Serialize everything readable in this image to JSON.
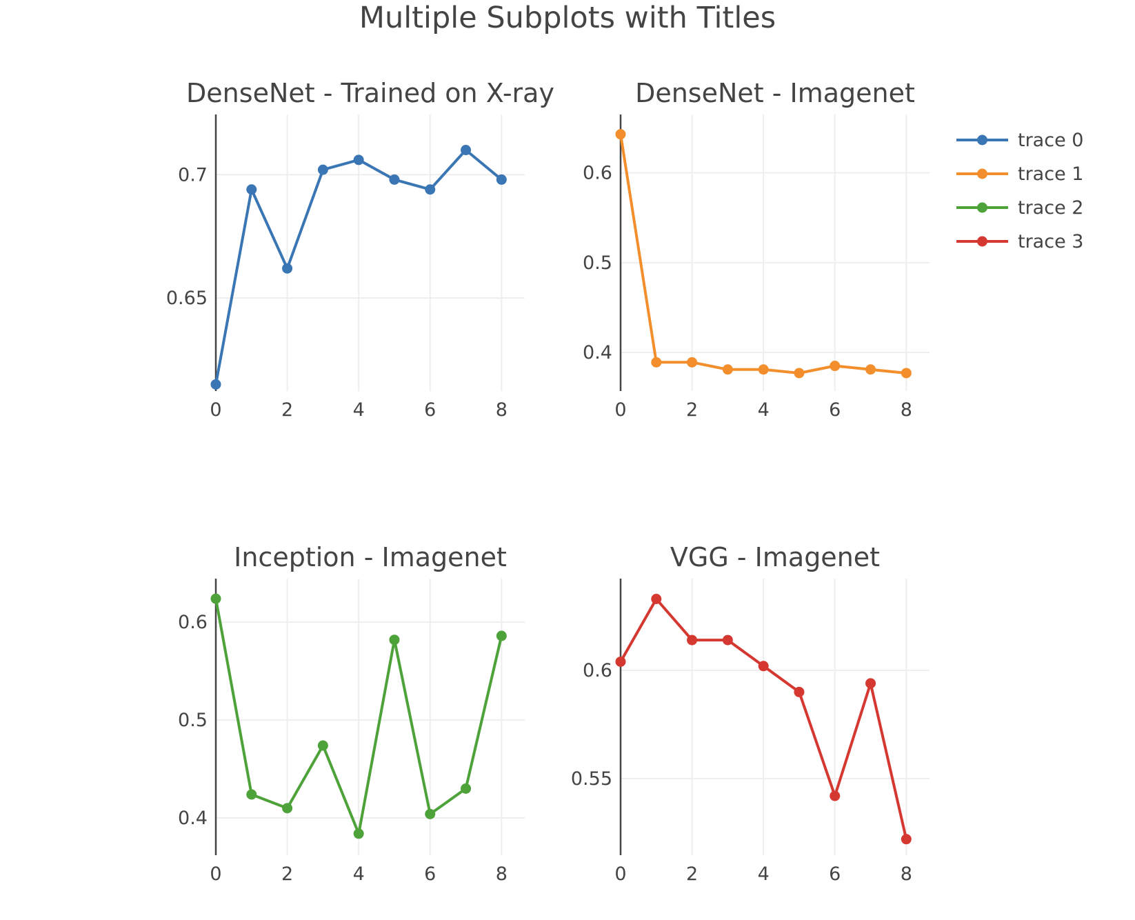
{
  "figure": {
    "title": "Multiple Subplots with Titles"
  },
  "legend": {
    "placement": "top-right",
    "entries": [
      {
        "name": "trace 0",
        "color": "#3a75b4"
      },
      {
        "name": "trace 1",
        "color": "#f28e2b"
      },
      {
        "name": "trace 2",
        "color": "#4ea23a"
      },
      {
        "name": "trace 3",
        "color": "#d43830"
      }
    ]
  },
  "chart_data": [
    {
      "type": "line",
      "title": "DenseNet - Trained on X-ray",
      "series": [
        {
          "name": "trace 0",
          "color": "#3a75b4",
          "x": [
            0,
            1,
            2,
            3,
            4,
            5,
            6,
            7,
            8
          ],
          "values": [
            0.615,
            0.694,
            0.662,
            0.702,
            0.706,
            0.698,
            0.694,
            0.71,
            0.698
          ]
        }
      ],
      "xticks": [
        0,
        2,
        4,
        6,
        8
      ],
      "xtick_labels": [
        "0",
        "2",
        "4",
        "6",
        "8"
      ],
      "yticks": [
        0.65,
        0.7
      ],
      "ytick_labels": [
        "0.65",
        "0.7"
      ],
      "xlim": [
        0,
        8.65
      ],
      "ylim": [
        0.6123,
        0.7244
      ],
      "grid": true,
      "xlabel": "",
      "ylabel": ""
    },
    {
      "type": "line",
      "title": "DenseNet - Imagenet",
      "series": [
        {
          "name": "trace 1",
          "color": "#f28e2b",
          "x": [
            0,
            1,
            2,
            3,
            4,
            5,
            6,
            7,
            8
          ],
          "values": [
            0.643,
            0.389,
            0.389,
            0.381,
            0.381,
            0.377,
            0.385,
            0.381,
            0.377
          ]
        }
      ],
      "xticks": [
        0,
        2,
        4,
        6,
        8
      ],
      "xtick_labels": [
        "0",
        "2",
        "4",
        "6",
        "8"
      ],
      "yticks": [
        0.4,
        0.5,
        0.6
      ],
      "ytick_labels": [
        "0.4",
        "0.5",
        "0.6"
      ],
      "xlim": [
        0,
        8.65
      ],
      "ylim": [
        0.357,
        0.665
      ],
      "grid": true,
      "xlabel": "",
      "ylabel": ""
    },
    {
      "type": "line",
      "title": "Inception - Imagenet",
      "series": [
        {
          "name": "trace 2",
          "color": "#4ea23a",
          "x": [
            0,
            1,
            2,
            3,
            4,
            5,
            6,
            7,
            8
          ],
          "values": [
            0.624,
            0.424,
            0.41,
            0.474,
            0.384,
            0.582,
            0.404,
            0.43,
            0.586
          ]
        }
      ],
      "xticks": [
        0,
        2,
        4,
        6,
        8
      ],
      "xtick_labels": [
        "0",
        "2",
        "4",
        "6",
        "8"
      ],
      "yticks": [
        0.4,
        0.5,
        0.6
      ],
      "ytick_labels": [
        "0.4",
        "0.5",
        "0.6"
      ],
      "xlim": [
        0,
        8.65
      ],
      "ylim": [
        0.362,
        0.6445
      ],
      "grid": true,
      "xlabel": "",
      "ylabel": ""
    },
    {
      "type": "line",
      "title": "VGG - Imagenet",
      "series": [
        {
          "name": "trace 3",
          "color": "#d43830",
          "x": [
            0,
            1,
            2,
            3,
            4,
            5,
            6,
            7,
            8
          ],
          "values": [
            0.604,
            0.633,
            0.614,
            0.614,
            0.602,
            0.59,
            0.542,
            0.594,
            0.522
          ]
        }
      ],
      "xticks": [
        0,
        2,
        4,
        6,
        8
      ],
      "xtick_labels": [
        "0",
        "2",
        "4",
        "6",
        "8"
      ],
      "yticks": [
        0.55,
        0.6
      ],
      "ytick_labels": [
        "0.55",
        "0.6"
      ],
      "xlim": [
        0,
        8.65
      ],
      "ylim": [
        0.5146,
        0.6424
      ],
      "grid": true,
      "xlabel": "",
      "ylabel": ""
    }
  ]
}
